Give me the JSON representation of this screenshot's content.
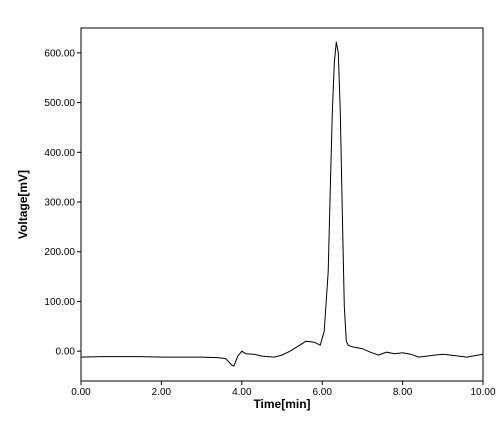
{
  "chart_data": {
    "type": "line",
    "title": "",
    "xlabel": "Time[min]",
    "ylabel": "Voltage[mV]",
    "xlim": [
      0,
      10
    ],
    "ylim": [
      -60,
      650
    ],
    "x_ticks": [
      0,
      2,
      4,
      6,
      8,
      10
    ],
    "x_tick_labels": [
      "0.00",
      "2.00",
      "4.00",
      "6.00",
      "8.00",
      "10.00"
    ],
    "y_ticks": [
      0,
      100,
      200,
      300,
      400,
      500,
      600
    ],
    "y_tick_labels": [
      "0.00",
      "100.00",
      "200.00",
      "300.00",
      "400.00",
      "500.00",
      "600.00"
    ],
    "grid": false,
    "legend": "none",
    "line_color": "#000000",
    "series": [
      {
        "x": [
          0.0,
          0.5,
          1.0,
          1.5,
          2.0,
          2.5,
          3.0,
          3.4,
          3.6,
          3.75,
          3.8,
          3.9,
          4.0,
          4.1,
          4.3,
          4.5,
          4.8,
          5.0,
          5.2,
          5.4,
          5.6,
          5.8,
          5.95,
          6.05,
          6.15,
          6.2,
          6.25,
          6.3,
          6.35,
          6.4,
          6.45,
          6.5,
          6.55,
          6.6,
          6.65,
          6.7,
          6.8,
          7.0,
          7.2,
          7.4,
          7.6,
          7.8,
          8.0,
          8.2,
          8.4,
          8.6,
          8.8,
          9.0,
          9.2,
          9.4,
          9.6,
          9.8,
          10.0
        ],
        "y": [
          -12,
          -11,
          -11,
          -11,
          -12,
          -12,
          -12,
          -13,
          -15,
          -28,
          -30,
          -10,
          0,
          -5,
          -6,
          -10,
          -12,
          -8,
          0,
          10,
          20,
          18,
          12,
          40,
          160,
          320,
          480,
          580,
          622,
          600,
          480,
          280,
          90,
          20,
          12,
          10,
          8,
          5,
          -2,
          -8,
          -2,
          -5,
          -3,
          -6,
          -12,
          -10,
          -8,
          -6,
          -8,
          -10,
          -12,
          -9,
          -6
        ]
      }
    ]
  }
}
